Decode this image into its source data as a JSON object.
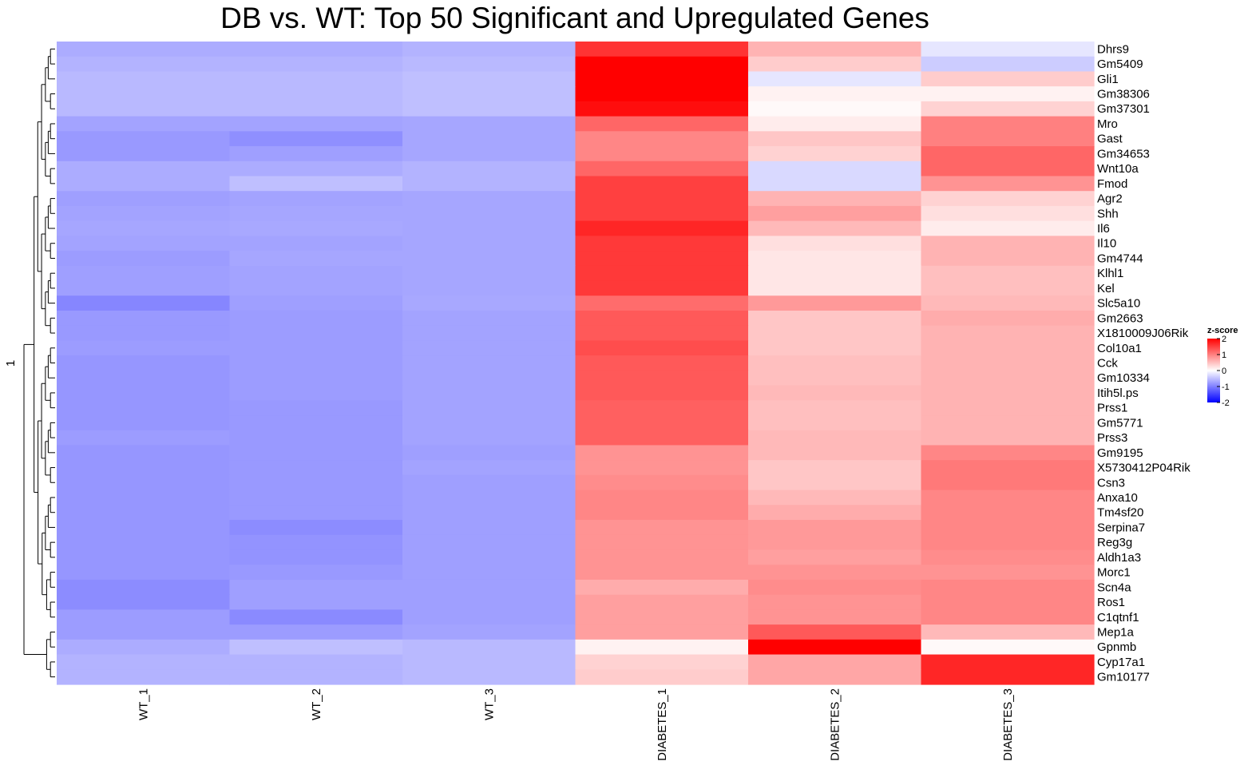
{
  "chart_data": {
    "type": "heatmap",
    "title": "DB vs. WT: Top 50 Significant and Upregulated Genes",
    "columns": [
      "WT_1",
      "WT_2",
      "WT_3",
      "DIABETES_1",
      "DIABETES_2",
      "DIABETES_3"
    ],
    "rows": [
      "Dhrs9",
      "Gm5409",
      "Gli1",
      "Gm38306",
      "Gm37301",
      "Mro",
      "Gast",
      "Gm34653",
      "Wnt10a",
      "Fmod",
      "Agr2",
      "Shh",
      "Il6",
      "Il10",
      "Gm4744",
      "Klhl1",
      "Kel",
      "Slc5a10",
      "Gm2663",
      "X1810009J06Rik",
      "Col10a1",
      "Cck",
      "Gm10334",
      "Itih5l.ps",
      "Prss1",
      "Gm5771",
      "Prss3",
      "Gm9195",
      "X5730412P04Rik",
      "Csn3",
      "Anxa10",
      "Tm4sf20",
      "Serpina7",
      "Reg3g",
      "Aldh1a3",
      "Morc1",
      "Scn4a",
      "Ros1",
      "C1qtnf1",
      "Mep1a",
      "Gpnmb",
      "Cyp17a1",
      "Gm10177"
    ],
    "values": [
      [
        -0.65,
        -0.65,
        -0.6,
        1.6,
        0.6,
        -0.2
      ],
      [
        -0.6,
        -0.6,
        -0.55,
        2.0,
        0.4,
        -0.4
      ],
      [
        -0.55,
        -0.55,
        -0.5,
        2.0,
        -0.2,
        0.4
      ],
      [
        -0.55,
        -0.55,
        -0.5,
        2.0,
        0.1,
        0.1
      ],
      [
        -0.55,
        -0.55,
        -0.5,
        1.9,
        0.05,
        0.35
      ],
      [
        -0.72,
        -0.72,
        -0.7,
        1.2,
        0.15,
        1.0
      ],
      [
        -0.8,
        -0.88,
        -0.7,
        0.95,
        0.45,
        1.0
      ],
      [
        -0.8,
        -0.75,
        -0.7,
        0.95,
        0.35,
        1.2
      ],
      [
        -0.65,
        -0.65,
        -0.6,
        1.2,
        -0.3,
        1.2
      ],
      [
        -0.65,
        -0.5,
        -0.6,
        1.5,
        -0.3,
        0.85
      ],
      [
        -0.75,
        -0.72,
        -0.7,
        1.5,
        0.6,
        0.35
      ],
      [
        -0.72,
        -0.7,
        -0.7,
        1.5,
        0.75,
        0.25
      ],
      [
        -0.7,
        -0.68,
        -0.7,
        1.7,
        0.55,
        0.15
      ],
      [
        -0.72,
        -0.72,
        -0.7,
        1.55,
        0.25,
        0.6
      ],
      [
        -0.78,
        -0.7,
        -0.7,
        1.55,
        0.2,
        0.6
      ],
      [
        -0.75,
        -0.72,
        -0.7,
        1.55,
        0.2,
        0.5
      ],
      [
        -0.75,
        -0.72,
        -0.7,
        1.55,
        0.2,
        0.5
      ],
      [
        -0.95,
        -0.75,
        -0.68,
        1.15,
        0.8,
        0.55
      ],
      [
        -0.8,
        -0.78,
        -0.72,
        1.3,
        0.45,
        0.65
      ],
      [
        -0.8,
        -0.78,
        -0.72,
        1.3,
        0.45,
        0.6
      ],
      [
        -0.78,
        -0.78,
        -0.72,
        1.4,
        0.45,
        0.6
      ],
      [
        -0.82,
        -0.78,
        -0.72,
        1.3,
        0.5,
        0.6
      ],
      [
        -0.82,
        -0.78,
        -0.72,
        1.3,
        0.5,
        0.6
      ],
      [
        -0.82,
        -0.78,
        -0.72,
        1.3,
        0.55,
        0.6
      ],
      [
        -0.82,
        -0.8,
        -0.72,
        1.25,
        0.5,
        0.6
      ],
      [
        -0.82,
        -0.8,
        -0.72,
        1.25,
        0.5,
        0.6
      ],
      [
        -0.78,
        -0.8,
        -0.72,
        1.25,
        0.55,
        0.6
      ],
      [
        -0.82,
        -0.8,
        -0.75,
        0.85,
        0.55,
        0.95
      ],
      [
        -0.82,
        -0.8,
        -0.72,
        0.85,
        0.45,
        1.05
      ],
      [
        -0.82,
        -0.8,
        -0.75,
        0.9,
        0.45,
        1.05
      ],
      [
        -0.82,
        -0.8,
        -0.75,
        0.95,
        0.55,
        0.95
      ],
      [
        -0.82,
        -0.8,
        -0.75,
        0.95,
        0.65,
        0.95
      ],
      [
        -0.82,
        -0.9,
        -0.75,
        0.85,
        0.8,
        0.95
      ],
      [
        -0.82,
        -0.85,
        -0.75,
        0.85,
        0.8,
        0.95
      ],
      [
        -0.82,
        -0.85,
        -0.75,
        0.85,
        0.75,
        0.9
      ],
      [
        -0.82,
        -0.8,
        -0.75,
        0.85,
        0.85,
        0.85
      ],
      [
        -0.9,
        -0.75,
        -0.75,
        0.65,
        0.9,
        0.95
      ],
      [
        -0.9,
        -0.75,
        -0.75,
        0.75,
        0.85,
        0.95
      ],
      [
        -0.78,
        -0.92,
        -0.75,
        0.75,
        0.85,
        0.95
      ],
      [
        -0.78,
        -0.78,
        -0.72,
        0.75,
        1.3,
        0.55
      ],
      [
        -0.65,
        -0.5,
        -0.55,
        0.1,
        2.0,
        0.05
      ],
      [
        -0.6,
        -0.6,
        -0.55,
        0.35,
        0.7,
        1.7
      ],
      [
        -0.6,
        -0.6,
        -0.55,
        0.4,
        0.7,
        1.7
      ]
    ],
    "row_tree_root_label": "1",
    "legend": {
      "title": "z-score",
      "ticks": [
        2,
        1,
        0,
        -1,
        -2
      ],
      "colors": {
        "low": "#0000ff",
        "mid": "#ffffff",
        "high": "#ff0000"
      },
      "placement": "right"
    }
  }
}
